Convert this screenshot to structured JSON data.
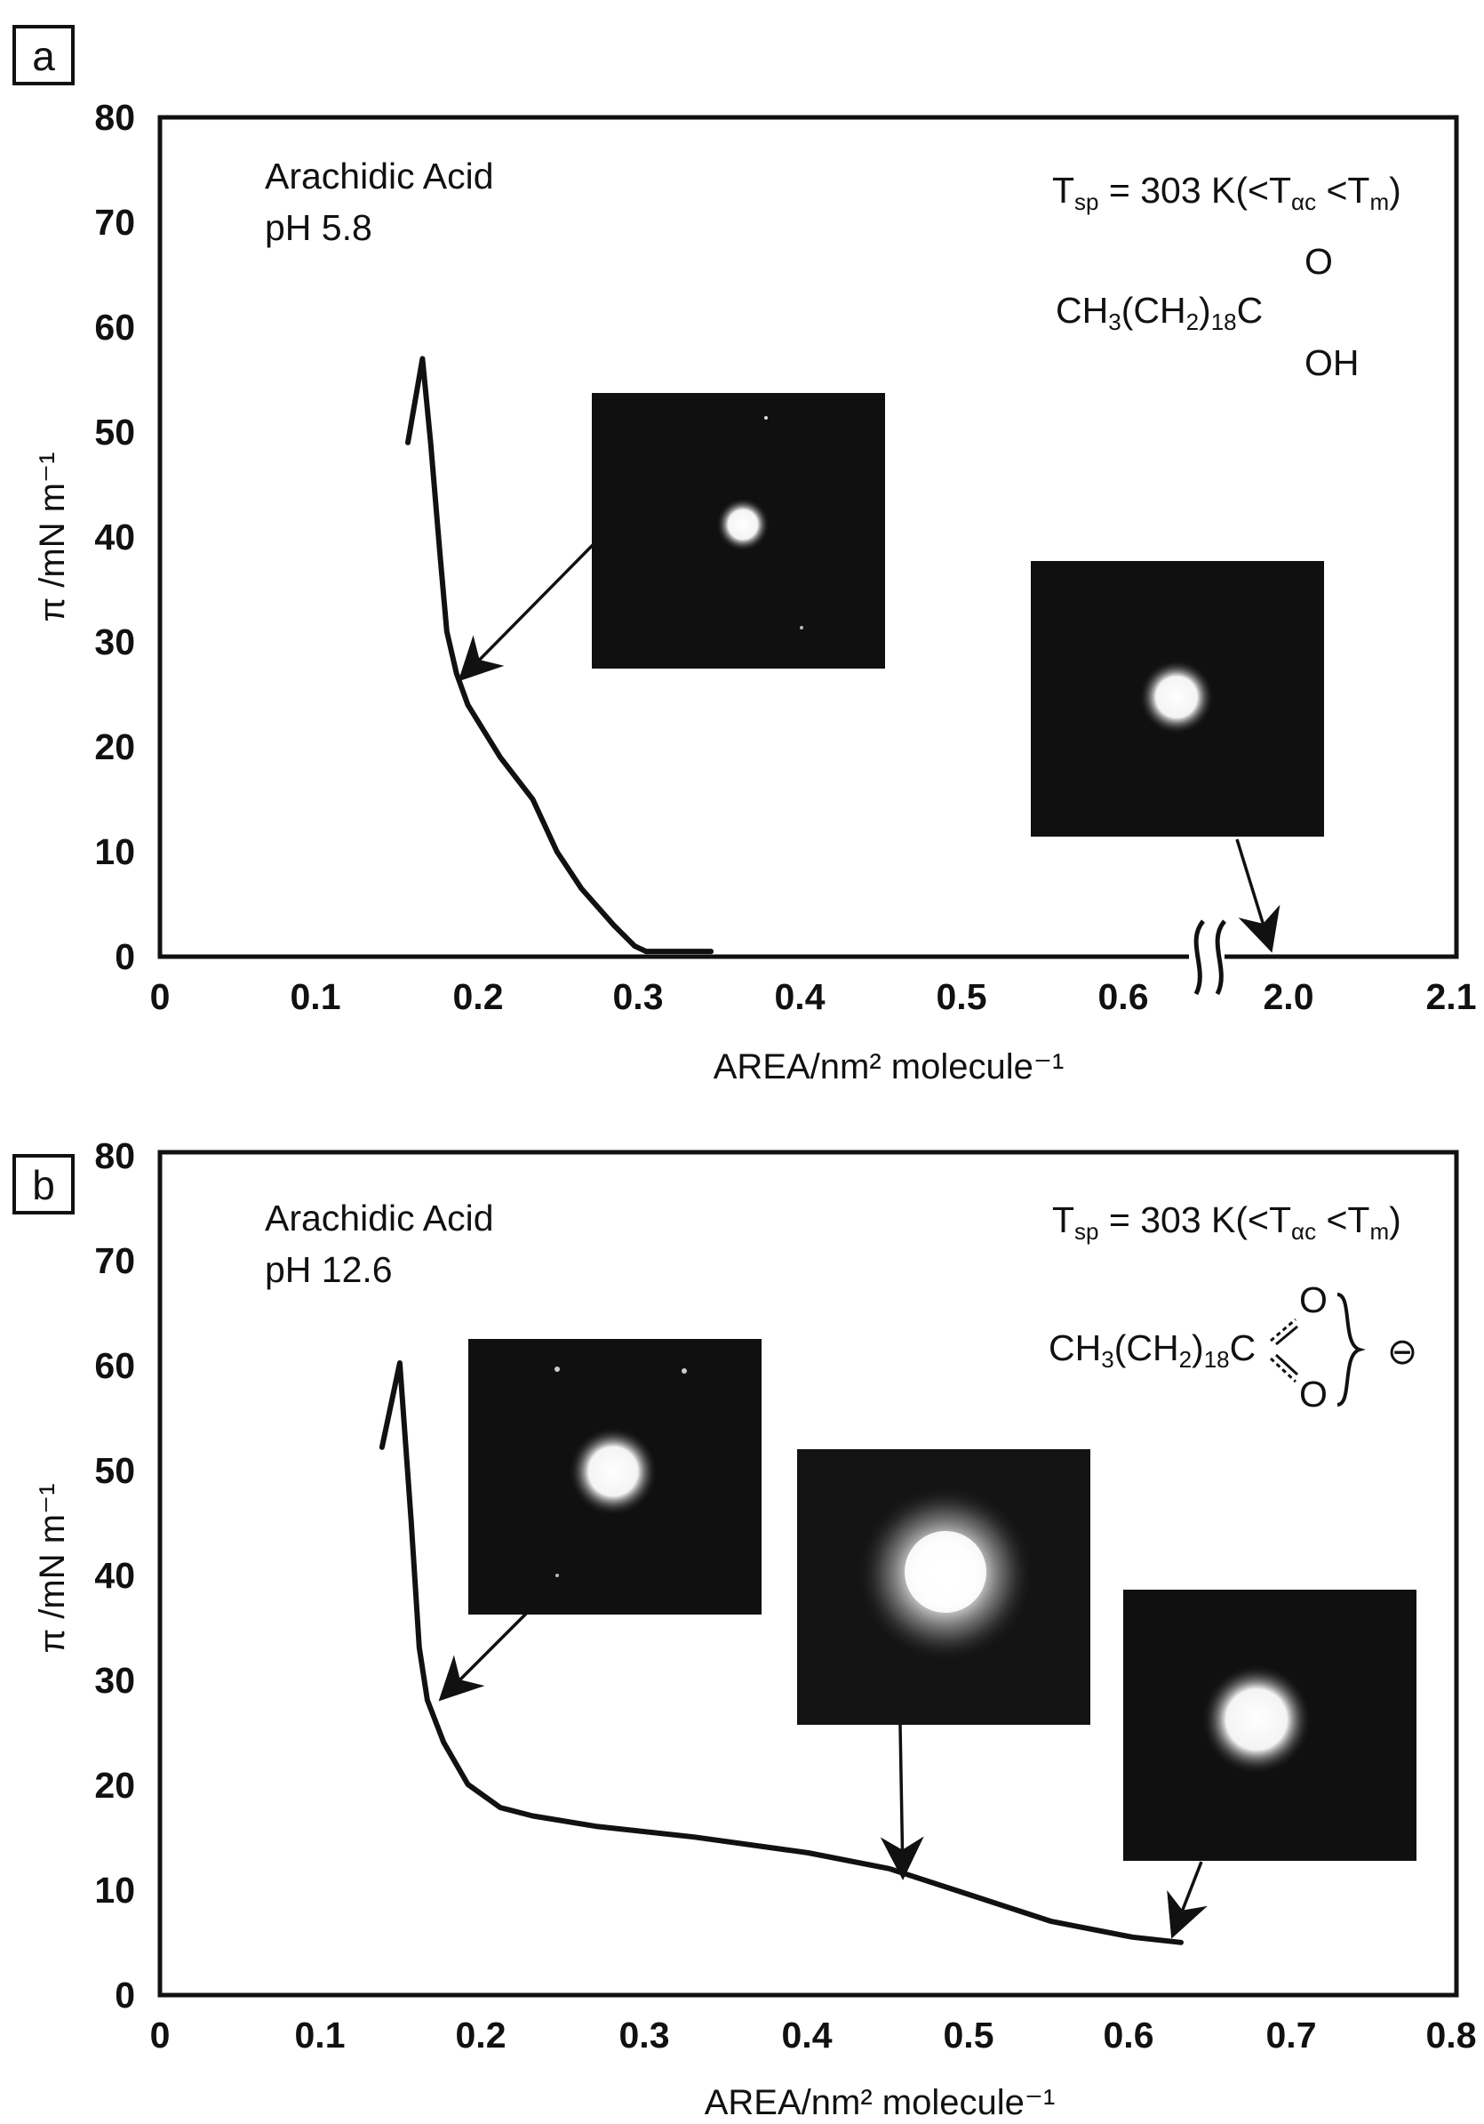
{
  "chart_data": [
    {
      "panel": "a",
      "type": "line",
      "xlabel": "AREA/nm²  molecule⁻¹",
      "ylabel": "π /mN m⁻¹",
      "ylim": [
        0,
        80
      ],
      "xlim": [
        0,
        0.8
      ],
      "xticks": [
        "0",
        "0.1",
        "0.2",
        "0.3",
        "0.4",
        "0.5",
        "0.6",
        "2.0",
        "2.1"
      ],
      "yticks": [
        "0",
        "10",
        "20",
        "30",
        "40",
        "50",
        "60",
        "70",
        "80"
      ],
      "axis_break": "between 0.6 and 2.0",
      "grid": false,
      "annotations": {
        "name": "Arachidic Acid",
        "ph": "pH 5.8",
        "temp": "T_sp = 303 K(<T_αc <T_m)",
        "formula_main": "CH₃(CH₂)₁₈C",
        "formula_o": "O",
        "formula_oh": "OH"
      },
      "series": [
        {
          "x": [
            0.153,
            0.162,
            0.167,
            0.173,
            0.177,
            0.183,
            0.19,
            0.21,
            0.23,
            0.245,
            0.26,
            0.28,
            0.293,
            0.3,
            0.34
          ],
          "y": [
            49,
            57,
            49,
            38,
            31,
            27,
            24,
            19,
            15,
            10,
            6.5,
            3,
            1,
            0.5,
            0.5
          ]
        }
      ],
      "insets": [
        {
          "diffraction": "spot",
          "points_to": {
            "x": 0.186,
            "y": 27
          }
        },
        {
          "diffraction": "spot",
          "points_to": {
            "x": 1.96,
            "y": 0
          }
        }
      ]
    },
    {
      "panel": "b",
      "type": "line",
      "xlabel": "AREA/nm² molecule⁻¹",
      "ylabel": "π /mN m⁻¹",
      "ylim": [
        0,
        80
      ],
      "xlim": [
        0,
        0.8
      ],
      "xticks": [
        "0",
        "0.1",
        "0.2",
        "0.3",
        "0.4",
        "0.5",
        "0.6",
        "0.7",
        "0.8"
      ],
      "yticks": [
        "0",
        "10",
        "20",
        "30",
        "40",
        "50",
        "60",
        "70",
        "80"
      ],
      "grid": false,
      "annotations": {
        "name": "Arachidic Acid",
        "ph": "pH 12.6",
        "temp": "T_sp = 303 K(<T_αc <T_m)",
        "formula_main": "CH₃(CH₂)₁₈C",
        "formula_o1": "O",
        "formula_o2": "O",
        "charge": "⊖"
      },
      "series": [
        {
          "x": [
            0.137,
            0.148,
            0.155,
            0.16,
            0.165,
            0.175,
            0.19,
            0.21,
            0.23,
            0.27,
            0.33,
            0.4,
            0.45,
            0.5,
            0.55,
            0.6,
            0.63
          ],
          "y": [
            52,
            60,
            45,
            33,
            28,
            24,
            20,
            17.8,
            17,
            16,
            15,
            13.5,
            12,
            9.5,
            7,
            5.5,
            5
          ]
        }
      ],
      "insets": [
        {
          "diffraction": "spot",
          "points_to": {
            "x": 0.17,
            "y": 28
          }
        },
        {
          "diffraction": "diffuse",
          "points_to": {
            "x": 0.46,
            "y": 12
          }
        },
        {
          "diffraction": "spot",
          "points_to": {
            "x": 0.62,
            "y": 5
          }
        }
      ]
    }
  ]
}
